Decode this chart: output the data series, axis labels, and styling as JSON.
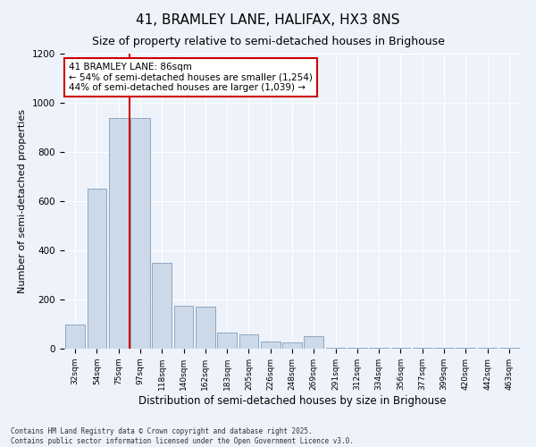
{
  "title": "41, BRAMLEY LANE, HALIFAX, HX3 8NS",
  "subtitle": "Size of property relative to semi-detached houses in Brighouse",
  "xlabel": "Distribution of semi-detached houses by size in Brighouse",
  "ylabel": "Number of semi-detached properties",
  "bar_values": [
    100,
    650,
    940,
    940,
    350,
    175,
    170,
    65,
    60,
    30,
    25,
    50,
    5,
    5,
    5,
    5,
    5,
    5,
    5,
    5,
    5
  ],
  "categories": [
    "32sqm",
    "54sqm",
    "75sqm",
    "97sqm",
    "118sqm",
    "140sqm",
    "162sqm",
    "183sqm",
    "205sqm",
    "226sqm",
    "248sqm",
    "269sqm",
    "291sqm",
    "312sqm",
    "334sqm",
    "356sqm",
    "377sqm",
    "399sqm",
    "420sqm",
    "442sqm",
    "463sqm"
  ],
  "bar_color": "#ccd9e8",
  "bar_edge_color": "#7090b0",
  "property_line_x": 2.5,
  "property_value": 86,
  "percent_smaller": 54,
  "count_smaller": 1254,
  "percent_larger": 44,
  "count_larger": 1039,
  "annotation_box_color": "#ffffff",
  "annotation_box_edge": "#cc0000",
  "annotation_text_color": "#000000",
  "vline_color": "#cc0000",
  "ylim": [
    0,
    1200
  ],
  "yticks": [
    0,
    200,
    400,
    600,
    800,
    1000,
    1200
  ],
  "background_color": "#eef2fa",
  "grid_color": "#ffffff",
  "footer_text": "Contains HM Land Registry data © Crown copyright and database right 2025.\nContains public sector information licensed under the Open Government Licence v3.0.",
  "title_fontsize": 11,
  "subtitle_fontsize": 9,
  "xlabel_fontsize": 8.5,
  "ylabel_fontsize": 8
}
